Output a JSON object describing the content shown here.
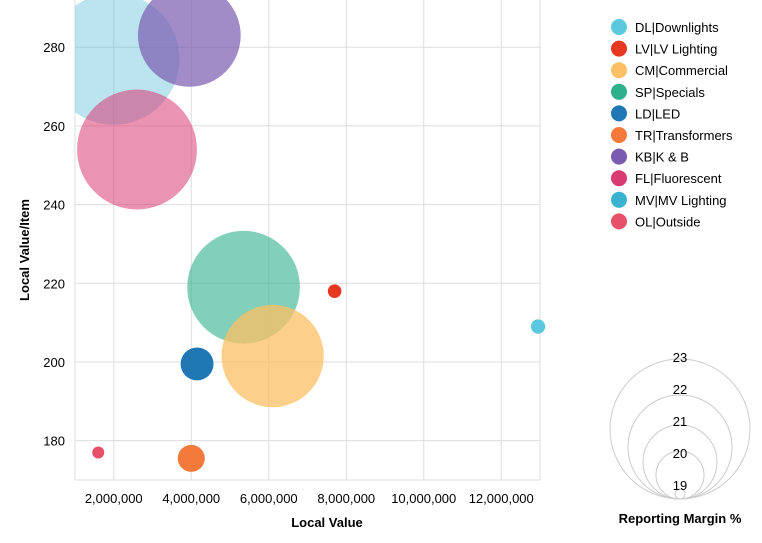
{
  "chart_data": {
    "type": "bubble",
    "xlabel": "Local Value",
    "ylabel": "Local Value/Item",
    "x_ticks": [
      "2,000,000",
      "4,000,000",
      "6,000,000",
      "8,000,000",
      "10,000,000",
      "12,000,000"
    ],
    "x_tick_values": [
      2000000,
      4000000,
      6000000,
      8000000,
      10000000,
      12000000
    ],
    "y_ticks": [
      "180",
      "200",
      "220",
      "240",
      "260",
      "280"
    ],
    "y_tick_values": [
      180,
      200,
      220,
      240,
      260,
      280
    ],
    "xlim": [
      1000000,
      13000000
    ],
    "ylim": [
      170,
      292
    ],
    "size_legend": {
      "title": "Reporting Margin %",
      "values": [
        19,
        20,
        21,
        22,
        23
      ],
      "labels": [
        "19",
        "20",
        "21",
        "22",
        "23"
      ]
    },
    "series": [
      {
        "name": "DL|Downlights",
        "color": "#5bc8e0",
        "x": 12950000,
        "y": 209,
        "margin": 19.98,
        "opacity": 1.0
      },
      {
        "name": "LV|LV Lighting",
        "color": "#e8371f",
        "x": 7700000,
        "y": 218,
        "margin": 19.95,
        "opacity": 1.0
      },
      {
        "name": "CM|Commercial",
        "color": "#fbc063",
        "x": 6100000,
        "y": 201.5,
        "margin": 22.35,
        "opacity": 0.75
      },
      {
        "name": "SP|Specials",
        "color": "#2fb08c",
        "x": 5350000,
        "y": 219,
        "margin": 22.56,
        "opacity": 0.6
      },
      {
        "name": "LD|LED",
        "color": "#1f77b4",
        "x": 4150000,
        "y": 199.5,
        "margin": 20.65,
        "opacity": 1.0
      },
      {
        "name": "TR|Transformers",
        "color": "#f47a3c",
        "x": 4000000,
        "y": 175.5,
        "margin": 20.46,
        "opacity": 1.0
      },
      {
        "name": "KB|K & B",
        "color": "#7b5bb0",
        "x": 3950000,
        "y": 283,
        "margin": 22.36,
        "opacity": 0.7
      },
      {
        "name": "FL|Fluorescent",
        "color": "#d93a72",
        "x": 2600000,
        "y": 254,
        "margin": 22.7,
        "opacity": 0.55
      },
      {
        "name": "MV|MV Lighting",
        "color": "#3bb2d0",
        "x": 2000000,
        "y": 277,
        "margin": 22.92,
        "opacity": 0.35
      },
      {
        "name": "OL|Outside",
        "color": "#e8506a",
        "x": 1600000,
        "y": 177,
        "margin": 19.68,
        "opacity": 1.0
      }
    ],
    "legend_order": [
      "DL|Downlights",
      "LV|LV Lighting",
      "CM|Commercial",
      "SP|Specials",
      "LD|LED",
      "TR|Transformers",
      "KB|K & B",
      "FL|Fluorescent",
      "MV|MV Lighting",
      "OL|Outside"
    ],
    "legend_colors": [
      "#5bc8e0",
      "#e8371f",
      "#fbc063",
      "#2fb08c",
      "#1f77b4",
      "#f47a3c",
      "#7b5bb0",
      "#d93a72",
      "#3bb2d0",
      "#e8506a"
    ],
    "draw_order": [
      "MV|MV Lighting",
      "KB|K & B",
      "FL|Fluorescent",
      "SP|Specials",
      "CM|Commercial",
      "LV|LV Lighting",
      "DL|Downlights",
      "LD|LED",
      "TR|Transformers",
      "OL|Outside"
    ]
  }
}
